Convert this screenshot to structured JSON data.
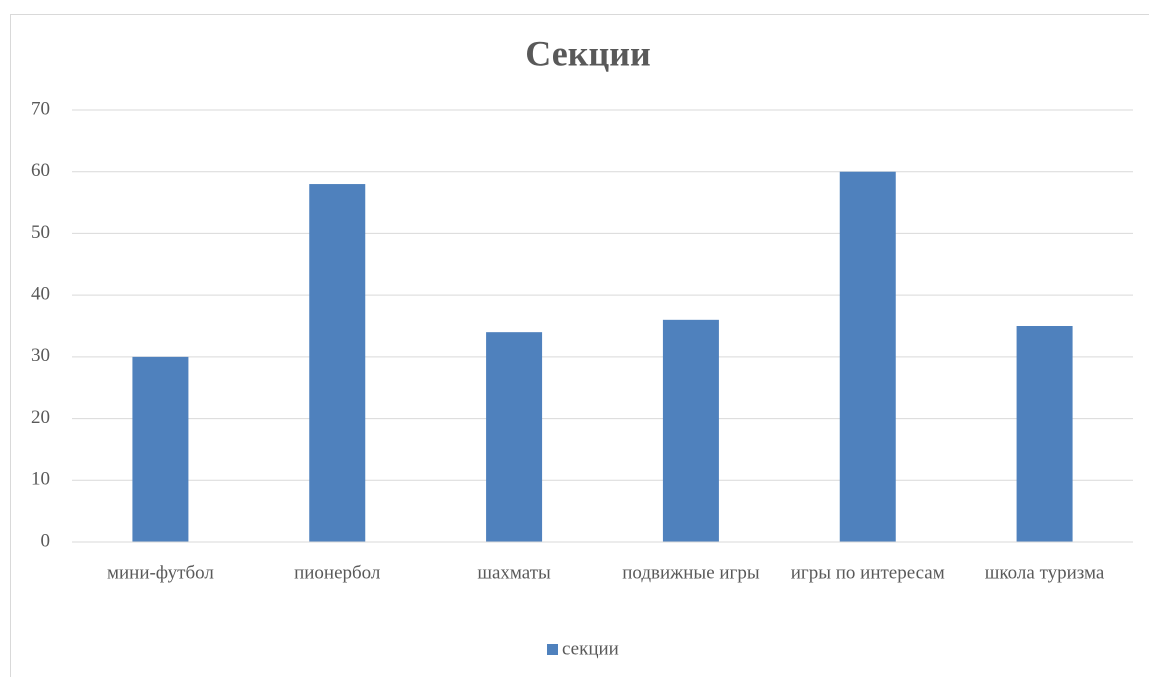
{
  "chart_data": {
    "type": "bar",
    "title": "Секции",
    "categories": [
      "мини-футбол",
      "пионербол",
      "шахматы",
      "подвижные игры",
      "игры по интересам",
      "школа туризма"
    ],
    "series": [
      {
        "name": "секции",
        "color": "#4f81bd",
        "values": [
          30,
          58,
          34,
          36,
          60,
          35
        ]
      }
    ],
    "ylim": [
      0,
      70
    ],
    "yticks": [
      0,
      10,
      20,
      30,
      40,
      50,
      60,
      70
    ],
    "grid": true,
    "legend": "bottom"
  }
}
